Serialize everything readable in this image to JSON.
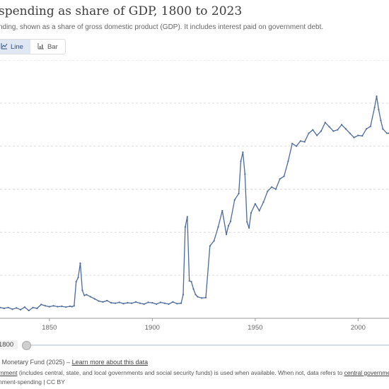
{
  "header": {
    "title": "spending as share of GDP, 1800 to 2023",
    "subtitle": "nding, shown as a share of gross domestic product (GDP). It includes interest paid on government debt."
  },
  "tabs": [
    {
      "label": "Line",
      "icon": "line-chart-icon",
      "active": true
    },
    {
      "label": "Bar",
      "icon": "bar-chart-icon",
      "active": false
    }
  ],
  "timeline": {
    "start_label": "1800"
  },
  "footer": {
    "source_text": "l Monetary Fund (2025) – ",
    "source_link": "Learn more about this data",
    "note_pre": "rnment",
    "note_mid": " (includes central, state, and local governments and social security funds) is used when available. When not, data refers to ",
    "note_link": "central government",
    "note_end": ".",
    "license": "nment-spending | CC BY"
  },
  "colors": {
    "line": "#4c6a9c",
    "grid": "#dddddd",
    "accent": "#2c4e86"
  },
  "chart_data": {
    "type": "line",
    "title": "spending as share of GDP, 1800 to 2023",
    "xlabel": "",
    "ylabel": "",
    "xticks": [
      1850,
      1900,
      1950,
      2000
    ],
    "x_range": [
      1826,
      2015
    ],
    "grid": true,
    "series": [
      {
        "x": [
          1826,
          1828,
          1830,
          1832,
          1834,
          1836,
          1838,
          1840,
          1842,
          1844,
          1846,
          1848,
          1850,
          1852,
          1854,
          1856,
          1858,
          1860,
          1861,
          1862,
          1863,
          1864,
          1865,
          1866,
          1867,
          1868,
          1870,
          1872,
          1874,
          1876,
          1878,
          1880,
          1882,
          1884,
          1886,
          1888,
          1890,
          1892,
          1894,
          1896,
          1898,
          1900,
          1902,
          1904,
          1906,
          1908,
          1910,
          1912,
          1914,
          1915,
          1916,
          1917,
          1918,
          1919,
          1920,
          1921,
          1922,
          1924,
          1926,
          1928,
          1930,
          1932,
          1934,
          1936,
          1937,
          1938,
          1940,
          1942,
          1943,
          1944,
          1945,
          1946,
          1947,
          1948,
          1950,
          1952,
          1954,
          1956,
          1958,
          1960,
          1962,
          1964,
          1966,
          1968,
          1970,
          1972,
          1974,
          1976,
          1978,
          1980,
          1982,
          1984,
          1986,
          1988,
          1990,
          1992,
          1994,
          1996,
          1998,
          2000,
          2002,
          2004,
          2006,
          2008,
          2009,
          2010,
          2011,
          2012,
          2014,
          2015
        ],
        "y": [
          2.5,
          2.3,
          2.5,
          2.1,
          2.4,
          2.0,
          2.6,
          1.8,
          2.5,
          2.3,
          3.2,
          2.9,
          2.7,
          2.9,
          2.7,
          2.8,
          2.6,
          2.8,
          2.7,
          2.9,
          8.5,
          9.5,
          12.8,
          6.5,
          5.3,
          5.5,
          5.0,
          4.5,
          4.0,
          3.8,
          4.1,
          3.6,
          3.5,
          3.7,
          3.4,
          3.6,
          3.5,
          3.8,
          3.5,
          3.3,
          3.7,
          3.6,
          3.3,
          3.7,
          3.5,
          3.3,
          3.8,
          3.4,
          3.5,
          5.5,
          21.2,
          23.6,
          8.7,
          8.5,
          6.8,
          5.5,
          5.0,
          4.7,
          4.8,
          16.8,
          18.0,
          21.2,
          25.0,
          19.5,
          21.5,
          22.5,
          27.5,
          29.0,
          36.5,
          38.6,
          33.5,
          22.4,
          21.0,
          24.5,
          26.6,
          25.0,
          27.0,
          29.5,
          30.5,
          30.0,
          32.4,
          33.0,
          36.5,
          40.6,
          40.0,
          41.2,
          41.0,
          43.0,
          43.8,
          42.5,
          43.5,
          45.5,
          44.5,
          43.5,
          43.8,
          45.0,
          44.0,
          43.0,
          42.0,
          42.5,
          42.4,
          44.0,
          44.6,
          49.0,
          51.6,
          48.5,
          46.0,
          44.0,
          43.0,
          43.0
        ]
      }
    ]
  }
}
